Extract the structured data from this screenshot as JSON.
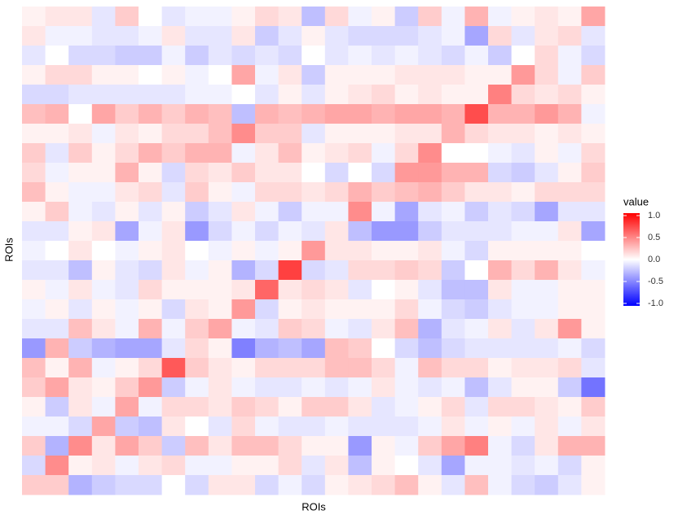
{
  "chart_data": {
    "type": "heatmap",
    "x_label": "ROIs",
    "y_label": "ROIs",
    "legend_title": "value",
    "color_scale": {
      "low": "#0000FF",
      "mid": "#FFFFFF",
      "high": "#FF0000"
    },
    "zlim": [
      -1,
      1
    ],
    "zticks": [
      {
        "value": 1,
        "label": "1.0"
      },
      0.5,
      {
        "value": 0,
        "label": "0.0"
      },
      -0.5,
      {
        "value": -1,
        "label": "-1.0"
      }
    ],
    "values": [
      [
        0.05,
        0.1,
        0.1,
        -0.1,
        0.2,
        0,
        -0.1,
        -0.05,
        -0.05,
        0.05,
        0.15,
        0.1,
        -0.25,
        0.15,
        -0.05,
        0.05,
        -0.2,
        0.2,
        -0.05,
        0.3,
        -0.05,
        0.05,
        0.1,
        0.05,
        0.35
      ],
      [
        0.1,
        -0.05,
        -0.05,
        -0.1,
        -0.1,
        -0.05,
        0.1,
        -0.1,
        -0.1,
        0.1,
        -0.2,
        -0.1,
        0.05,
        -0.1,
        -0.15,
        -0.15,
        -0.15,
        -0.1,
        -0.05,
        -0.35,
        0.15,
        -0.1,
        0.1,
        0.15,
        -0.1
      ],
      [
        -0.1,
        0,
        -0.15,
        -0.15,
        -0.2,
        -0.2,
        -0.05,
        -0.2,
        -0.1,
        -0.15,
        -0.1,
        -0.15,
        0,
        -0.1,
        -0.05,
        -0.1,
        -0.05,
        -0.1,
        -0.15,
        -0.05,
        -0.2,
        0,
        0.15,
        -0.05,
        -0.15
      ],
      [
        0.05,
        0.15,
        0.15,
        0.05,
        0.05,
        0,
        0.05,
        -0.05,
        0,
        0.35,
        -0.05,
        0.1,
        -0.2,
        0.05,
        0.05,
        0.05,
        0.1,
        0.1,
        0.1,
        0.05,
        0.05,
        0.4,
        0.15,
        -0.05,
        0.2
      ],
      [
        -0.15,
        -0.15,
        -0.1,
        -0.1,
        -0.1,
        -0.1,
        -0.1,
        -0.05,
        -0.05,
        0,
        -0.1,
        0.05,
        -0.1,
        0.05,
        0.1,
        0.15,
        0.05,
        0.1,
        0.05,
        0.05,
        0.5,
        0.15,
        0.1,
        0.15,
        0.05
      ],
      [
        0.25,
        0.3,
        0,
        0.35,
        0.2,
        0.3,
        0.2,
        0.3,
        0.25,
        -0.25,
        0.3,
        0.25,
        0.3,
        0.35,
        0.35,
        0.3,
        0.35,
        0.35,
        0.3,
        0.7,
        0.3,
        0.3,
        0.4,
        0.3,
        -0.05
      ],
      [
        0.05,
        0.05,
        0.1,
        -0.05,
        0.1,
        0.05,
        0.15,
        0.15,
        0.25,
        0.45,
        0.2,
        0.2,
        -0.1,
        0.05,
        0.05,
        0.05,
        0.1,
        0.1,
        0.3,
        0.15,
        0.1,
        0.1,
        0.05,
        0.1,
        0.05
      ],
      [
        0.2,
        -0.1,
        0.2,
        0.05,
        0.15,
        0.3,
        0.2,
        0.3,
        0.3,
        -0.05,
        0.1,
        0.25,
        0.05,
        0.1,
        0.15,
        -0.05,
        0.15,
        0.45,
        0,
        0,
        -0.05,
        -0.1,
        0.05,
        -0.05,
        0.15
      ],
      [
        0.15,
        -0.05,
        0.05,
        0.05,
        0.3,
        0.05,
        -0.15,
        0.15,
        0.1,
        0.2,
        0.1,
        0.1,
        0,
        -0.15,
        0,
        -0.15,
        0.4,
        0.4,
        0.3,
        0.3,
        -0.15,
        -0.2,
        -0.1,
        0.05,
        0.2
      ],
      [
        0.25,
        0.05,
        -0.05,
        -0.05,
        0.1,
        0.15,
        -0.1,
        0.2,
        0.05,
        -0.05,
        0.15,
        0.15,
        0.1,
        0.15,
        0.3,
        0.2,
        0.25,
        0.3,
        0.2,
        0.1,
        0.1,
        0.05,
        0.15,
        0.15,
        0.15
      ],
      [
        0.05,
        0.2,
        -0.05,
        -0.1,
        0.05,
        -0.1,
        0.05,
        -0.2,
        -0.1,
        0.1,
        -0.05,
        -0.2,
        -0.05,
        -0.05,
        0.45,
        -0.05,
        -0.35,
        -0.1,
        -0.05,
        -0.2,
        -0.1,
        -0.15,
        -0.35,
        -0.1,
        -0.1
      ],
      [
        -0.1,
        -0.1,
        0.05,
        0.1,
        -0.35,
        -0.05,
        0.1,
        -0.4,
        -0.15,
        -0.05,
        -0.15,
        -0.05,
        -0.1,
        0.1,
        -0.25,
        -0.4,
        -0.4,
        -0.2,
        -0.1,
        -0.1,
        -0.1,
        -0.05,
        -0.05,
        0.1,
        -0.35
      ],
      [
        -0.05,
        0,
        0.1,
        0,
        -0.05,
        0.05,
        0.1,
        0,
        -0.05,
        0.05,
        -0.05,
        0.05,
        0.4,
        0.1,
        0.1,
        0.05,
        0.05,
        0.1,
        -0.05,
        -0.15,
        0.05,
        0.05,
        0.05,
        0.05,
        0
      ],
      [
        -0.1,
        -0.1,
        -0.25,
        0.05,
        -0.1,
        -0.15,
        0.1,
        -0.05,
        0.05,
        -0.3,
        -0.15,
        0.75,
        -0.15,
        -0.1,
        0.15,
        0.15,
        0.2,
        0.15,
        -0.2,
        0,
        0.3,
        0.15,
        0.3,
        0.1,
        -0.05
      ],
      [
        0.05,
        -0.05,
        0.1,
        -0.05,
        -0.1,
        0.15,
        0.05,
        0.05,
        0.05,
        0.1,
        0.6,
        0.1,
        0.15,
        0.1,
        -0.1,
        0,
        0.05,
        -0.1,
        -0.25,
        -0.25,
        0.1,
        -0.05,
        -0.05,
        0.05,
        0.05
      ],
      [
        -0.05,
        0.05,
        -0.1,
        0.05,
        -0.05,
        0.05,
        -0.15,
        0.1,
        0.05,
        0.4,
        -0.15,
        0.05,
        0.1,
        0.05,
        0.05,
        0.05,
        0.15,
        -0.05,
        -0.15,
        -0.2,
        -0.1,
        -0.05,
        -0.05,
        0.05,
        0.05
      ],
      [
        -0.1,
        -0.1,
        0.25,
        0.1,
        -0.05,
        0.3,
        -0.05,
        0.2,
        0.35,
        -0.05,
        -0.1,
        0.2,
        0.15,
        -0.05,
        -0.1,
        0.1,
        0.25,
        -0.3,
        -0.1,
        -0.05,
        0.1,
        -0.1,
        0.1,
        0.4,
        0.05
      ],
      [
        -0.4,
        0.3,
        -0.2,
        -0.3,
        -0.35,
        -0.35,
        -0.1,
        0.15,
        0.05,
        -0.5,
        -0.3,
        -0.25,
        -0.35,
        0.25,
        0.2,
        0,
        -0.15,
        -0.25,
        -0.15,
        -0.1,
        -0.1,
        -0.1,
        -0.1,
        -0.05,
        -0.15
      ],
      [
        0.25,
        0.05,
        0.3,
        -0.05,
        0.05,
        0.15,
        0.65,
        0.2,
        0.1,
        0.05,
        0.15,
        0.15,
        0.15,
        0.25,
        0.25,
        0.15,
        -0.05,
        0.25,
        0.15,
        0.15,
        0.05,
        0.1,
        0.1,
        0.15,
        -0.1
      ],
      [
        0.2,
        0.35,
        0.1,
        0.05,
        0.2,
        0.4,
        -0.2,
        -0.05,
        0.1,
        -0.05,
        -0.1,
        -0.1,
        -0.05,
        -0.1,
        -0.05,
        0.1,
        -0.05,
        -0.1,
        -0.05,
        -0.25,
        -0.1,
        0.05,
        0.05,
        -0.2,
        -0.55
      ],
      [
        0.05,
        -0.2,
        0.1,
        -0.05,
        0.35,
        -0.05,
        0.15,
        0.15,
        0.1,
        0.2,
        0.15,
        0.05,
        0.2,
        0.2,
        0.1,
        -0.1,
        -0.05,
        0.05,
        0.15,
        -0.1,
        0.15,
        0.15,
        0.1,
        0.05,
        0.2
      ],
      [
        -0.05,
        -0.05,
        -0.15,
        0.35,
        -0.2,
        -0.25,
        0.1,
        0,
        -0.1,
        0.15,
        -0.05,
        -0.1,
        -0.1,
        -0.05,
        -0.1,
        -0.1,
        -0.1,
        -0.05,
        0.1,
        -0.05,
        0.05,
        -0.05,
        0.1,
        -0.05,
        0.1
      ],
      [
        0.2,
        -0.3,
        0.45,
        0.1,
        0.35,
        0.2,
        -0.2,
        0.25,
        0.1,
        0.25,
        0.25,
        0.15,
        0.05,
        0.05,
        -0.4,
        0.05,
        -0.05,
        0.2,
        0.35,
        0.5,
        -0.05,
        -0.15,
        0.1,
        0.3,
        0.3
      ],
      [
        -0.15,
        0.45,
        0.05,
        0.1,
        -0.05,
        0.1,
        0.15,
        -0.05,
        -0.05,
        0.05,
        0.05,
        0.15,
        -0.1,
        0.1,
        -0.25,
        0.05,
        0,
        -0.1,
        -0.35,
        -0.05,
        -0.05,
        -0.1,
        -0.05,
        -0.15,
        0.05
      ],
      [
        0.2,
        0.2,
        -0.3,
        -0.2,
        -0.15,
        -0.15,
        0,
        -0.15,
        0.1,
        0.1,
        -0.15,
        -0.05,
        -0.15,
        0.05,
        0.1,
        0.15,
        0.25,
        0.05,
        -0.1,
        0.25,
        -0.05,
        -0.15,
        -0.2,
        -0.1,
        0.05
      ]
    ]
  }
}
